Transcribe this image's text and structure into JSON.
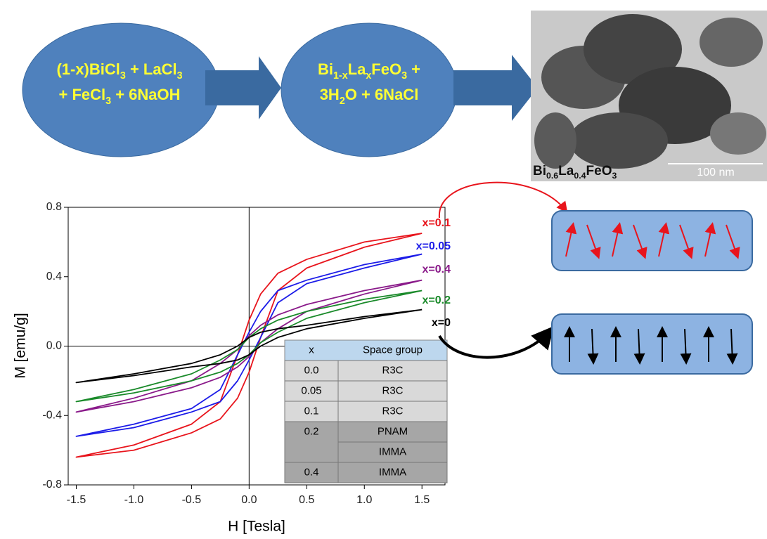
{
  "reaction": {
    "reactants": [
      [
        "(1-x)BiCl",
        "3",
        " + LaCl",
        "3"
      ],
      [
        "+ FeCl",
        "3",
        "  +  6NaOH"
      ]
    ],
    "products": [
      [
        "Bi",
        "1-x",
        "La",
        "x",
        "FeO",
        "3",
        "  +"
      ],
      [
        "3H",
        "2",
        "O + 6NaCl"
      ]
    ]
  },
  "image": {
    "caption": [
      "Bi",
      "0.6",
      "La",
      "0.4",
      "FeO",
      "3"
    ],
    "scale_bar": "100 nm"
  },
  "chart_data": {
    "type": "line",
    "x_label": "H [Tesla]",
    "y_label": "M [emu/g]",
    "xlim": [
      -1.57,
      1.7
    ],
    "ylim": [
      -0.8,
      0.8
    ],
    "xticks": [
      -1.5,
      {
        "value": -1,
        "label": "-1.0"
      },
      -0.5,
      {
        "value": 0,
        "label": "0.0"
      },
      0.5,
      {
        "value": 1,
        "label": "1.0"
      },
      1.5
    ],
    "yticks": [
      -0.8,
      -0.4,
      {
        "value": 0,
        "label": "0.0"
      },
      0.4,
      0.8
    ],
    "x": [
      1.5,
      1,
      0.5,
      0.25,
      0.1,
      0,
      -0.1,
      -0.25,
      -0.5,
      -1,
      -1.5,
      -1.5,
      -1,
      -0.5,
      -0.25,
      -0.1,
      0,
      0.1,
      0.25,
      0.5,
      1,
      1.5
    ],
    "series": [
      {
        "name": "x=0.1",
        "color": "#e8141c",
        "values": [
          0.65,
          0.6,
          0.5,
          0.42,
          0.3,
          0.15,
          -0.05,
          -0.32,
          -0.45,
          -0.57,
          -0.64,
          -0.64,
          -0.6,
          -0.5,
          -0.42,
          -0.3,
          -0.15,
          0.05,
          0.32,
          0.45,
          0.57,
          0.65
        ]
      },
      {
        "name": "x=0.05",
        "color": "#1c1ce8",
        "values": [
          0.53,
          0.47,
          0.38,
          0.32,
          0.2,
          0.08,
          -0.05,
          -0.25,
          -0.36,
          -0.45,
          -0.52,
          -0.52,
          -0.47,
          -0.38,
          -0.32,
          -0.2,
          -0.08,
          0.05,
          0.25,
          0.36,
          0.45,
          0.53
        ]
      },
      {
        "name": "x=0.4",
        "color": "#8a1a8a",
        "values": [
          0.38,
          0.32,
          0.24,
          0.18,
          0.12,
          0.06,
          -0.02,
          -0.1,
          -0.2,
          -0.3,
          -0.38,
          -0.38,
          -0.32,
          -0.24,
          -0.18,
          -0.12,
          -0.06,
          0.02,
          0.1,
          0.2,
          0.3,
          0.38
        ]
      },
      {
        "name": "x=0.2",
        "color": "#1a8a2a",
        "values": [
          0.32,
          0.27,
          0.2,
          0.15,
          0.1,
          0.05,
          -0.02,
          -0.08,
          -0.16,
          -0.25,
          -0.32,
          -0.32,
          -0.27,
          -0.2,
          -0.15,
          -0.1,
          -0.05,
          0.02,
          0.08,
          0.16,
          0.25,
          0.32
        ]
      },
      {
        "name": "x=0",
        "color": "#000000",
        "values": [
          0.21,
          0.17,
          0.12,
          0.1,
          0.08,
          0.05,
          0,
          -0.05,
          -0.1,
          -0.16,
          -0.21,
          -0.21,
          -0.17,
          -0.12,
          -0.1,
          -0.08,
          -0.05,
          0,
          0.05,
          0.1,
          0.16,
          0.21
        ]
      }
    ]
  },
  "table": {
    "header": [
      "x",
      "Space group"
    ],
    "rows": [
      {
        "x": "0.0",
        "groups": [
          "R3C"
        ]
      },
      {
        "x": "0.05",
        "groups": [
          "R3C"
        ]
      },
      {
        "x": "0.1",
        "groups": [
          "R3C"
        ]
      },
      {
        "x": "0.2",
        "groups": [
          "PNAM",
          "IMMA"
        ]
      },
      {
        "x": "0.4",
        "groups": [
          "IMMA"
        ]
      }
    ]
  }
}
